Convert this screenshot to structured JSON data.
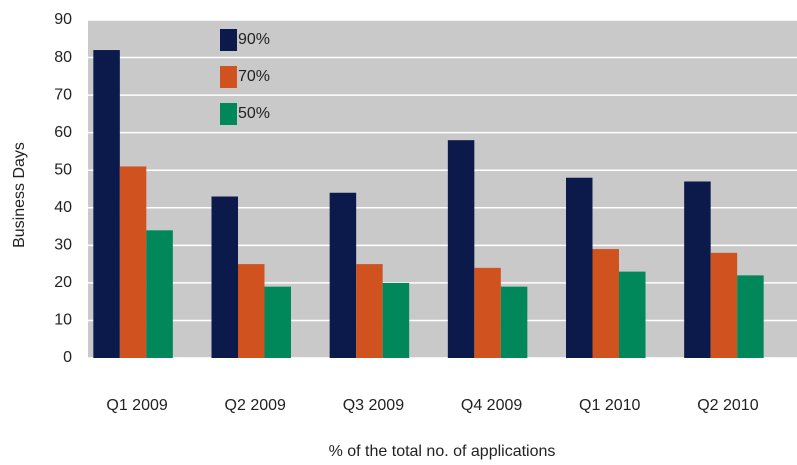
{
  "chart_data": {
    "type": "bar",
    "ylabel": "Business Days",
    "xlabel": "% of the total no. of applications",
    "categories": [
      "Q1 2009",
      "Q2 2009",
      "Q3 2009",
      "Q4 2009",
      "Q1 2010",
      "Q2 2010"
    ],
    "series": [
      {
        "name": "90%",
        "color": "#0b1a4b",
        "values": [
          82,
          43,
          44,
          58,
          48,
          47
        ]
      },
      {
        "name": "70%",
        "color": "#cf521f",
        "values": [
          51,
          25,
          25,
          24,
          29,
          28
        ]
      },
      {
        "name": "50%",
        "color": "#00885a",
        "values": [
          34,
          19,
          20,
          19,
          23,
          22
        ]
      }
    ],
    "ylim": [
      0,
      90
    ],
    "yticks": [
      0,
      10,
      20,
      30,
      40,
      50,
      60,
      70,
      80,
      90
    ],
    "grid": true,
    "legend": "upper-left"
  }
}
